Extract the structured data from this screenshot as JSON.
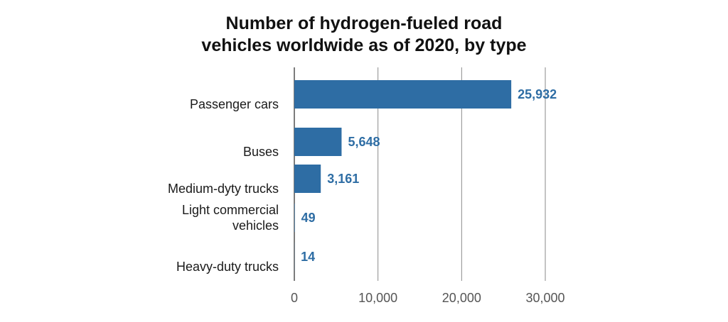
{
  "chart_data": {
    "type": "bar",
    "orientation": "horizontal",
    "title_lines": [
      "Number of hydrogen-fueled road",
      "vehicles worldwide as of 2020, by type"
    ],
    "categories": [
      [
        "Passenger cars"
      ],
      [
        "Buses"
      ],
      [
        "Medium-dyty trucks"
      ],
      [
        "Light commercial",
        "vehicles"
      ],
      [
        "Heavy-duty trucks"
      ]
    ],
    "values": [
      25932,
      5648,
      3161,
      49,
      14
    ],
    "value_labels": [
      "25,932",
      "5,648",
      "3,161",
      "49",
      "14"
    ],
    "xlim": [
      0,
      30000
    ],
    "xticks": [
      0,
      10000,
      20000,
      30000
    ],
    "xtick_labels": [
      "0",
      "10,000",
      "20,000",
      "30,000"
    ],
    "grid": true,
    "bar_color": "#2e6da4",
    "label_color": "#2e6da4"
  }
}
